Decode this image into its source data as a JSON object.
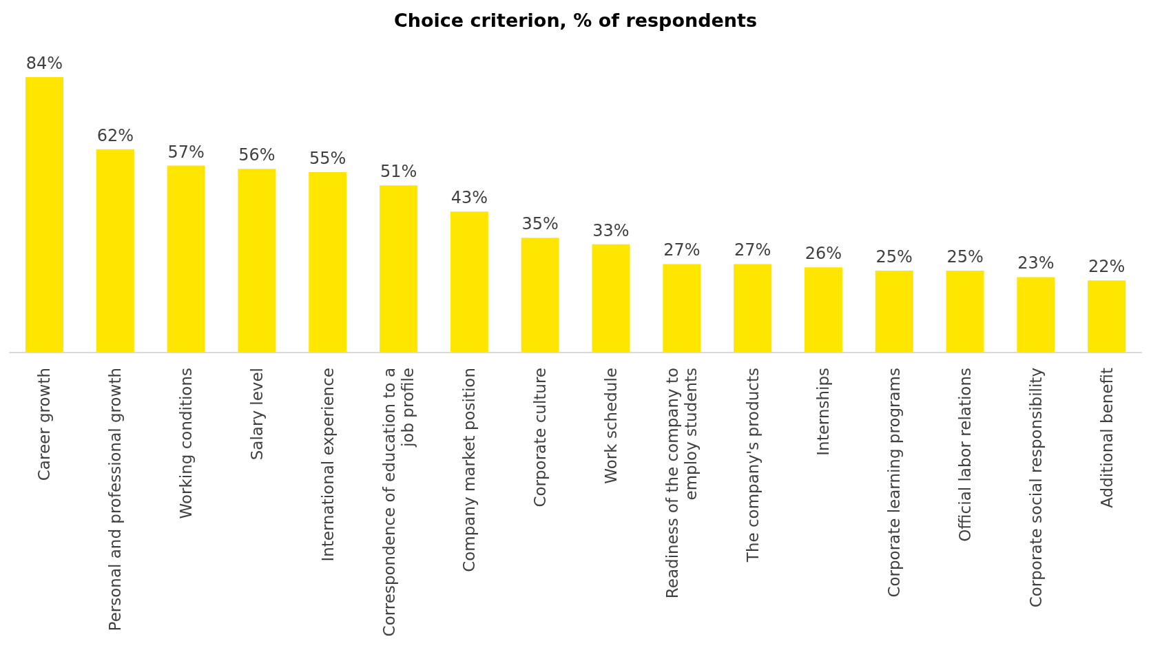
{
  "chart_data": {
    "type": "bar",
    "title": "Choice criterion, % of respondents",
    "categories": [
      "Career growth",
      "Personal and professional growth",
      "Working conditions",
      "Salary level",
      "International experience",
      "Correspondence of education to a job profile",
      "Company market position",
      "Corporate culture",
      "Work schedule",
      "Readiness of the company to employ students",
      "The company's products",
      "Internships",
      "Corporate learning programs",
      "Official labor relations",
      "Corporate social responsibility",
      "Additional benefit"
    ],
    "values": [
      84,
      62,
      57,
      56,
      55,
      51,
      43,
      35,
      33,
      27,
      27,
      26,
      25,
      25,
      23,
      22
    ],
    "value_labels": [
      "84%",
      "62%",
      "57%",
      "56%",
      "55%",
      "51%",
      "43%",
      "35%",
      "33%",
      "27%",
      "27%",
      "26%",
      "25%",
      "25%",
      "23%",
      "22%"
    ],
    "color": "#ffe600",
    "grid": false,
    "legend": false
  }
}
